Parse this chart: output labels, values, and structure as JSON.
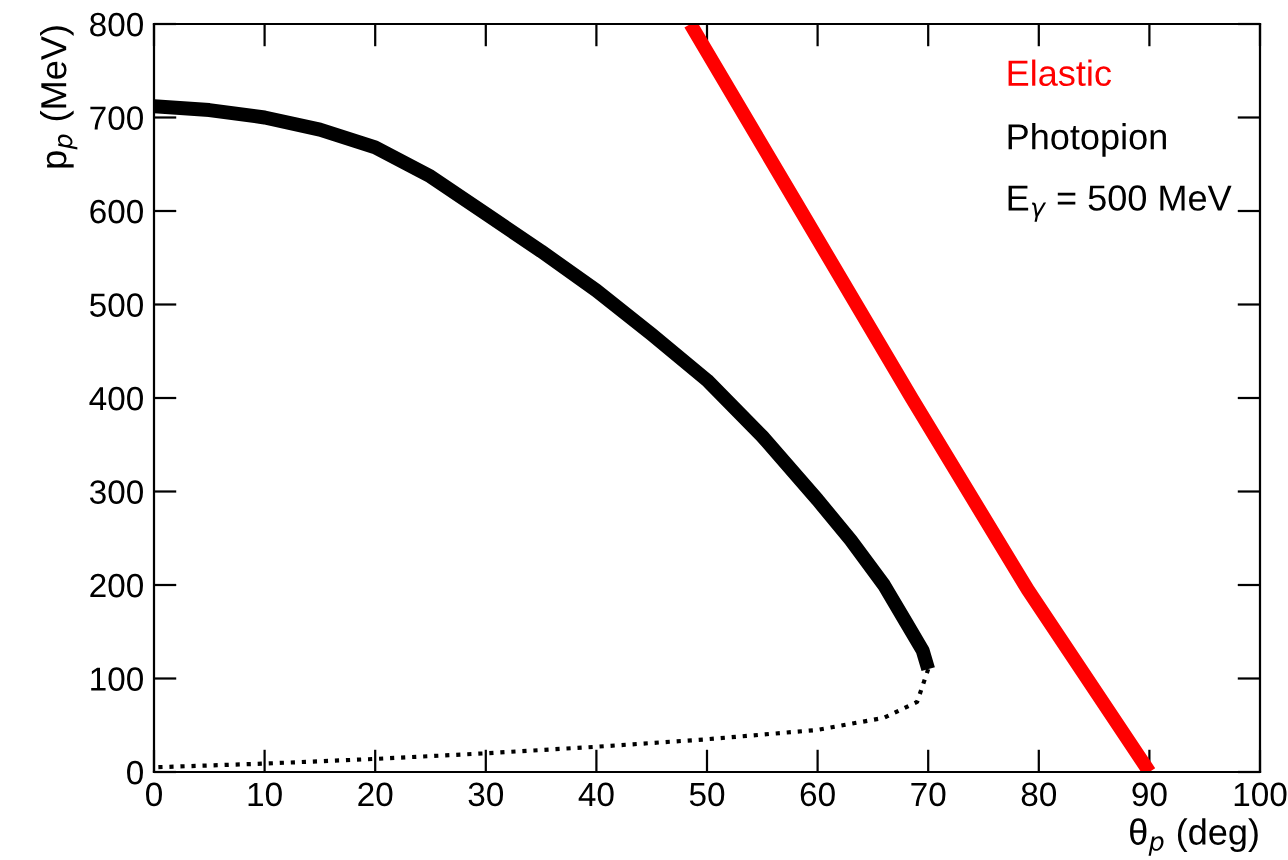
{
  "chart_data": {
    "type": "line",
    "xlabel": "θ$_{p}$ (deg)",
    "ylabel": "p$_{p}$ (MeV)",
    "xlim": [
      0,
      100
    ],
    "ylim": [
      0,
      800
    ],
    "xticks": [
      0,
      10,
      20,
      30,
      40,
      50,
      60,
      70,
      80,
      90,
      100
    ],
    "yticks": [
      0,
      100,
      200,
      300,
      400,
      500,
      600,
      700,
      800
    ],
    "grid": false,
    "legend": "top right",
    "annotations": [
      "E$_{γ}$ = 500 MeV"
    ],
    "series": [
      {
        "name": "Elastic",
        "color": "#ff0000",
        "x": [
          48.5,
          58,
          68.5,
          79,
          90
        ],
        "values": [
          800,
          610,
          400,
          195,
          0
        ]
      },
      {
        "name": "Photopion",
        "color": "#000000",
        "x": [
          0,
          5,
          10,
          15,
          20,
          25,
          30,
          35,
          40,
          45,
          50,
          55,
          60,
          63,
          66,
          68,
          69.5,
          70
        ],
        "values": [
          712,
          708,
          700,
          687,
          668,
          637,
          597,
          557,
          515,
          468,
          419,
          359,
          291,
          248,
          200,
          160,
          130,
          110
        ]
      },
      {
        "color": "#000000",
        "line_style": "dotted",
        "x": [
          70,
          69,
          66,
          60,
          50,
          40,
          30,
          20,
          10,
          0
        ],
        "values": [
          110,
          75,
          58,
          45,
          35,
          27,
          20,
          14,
          9,
          5
        ]
      }
    ]
  }
}
